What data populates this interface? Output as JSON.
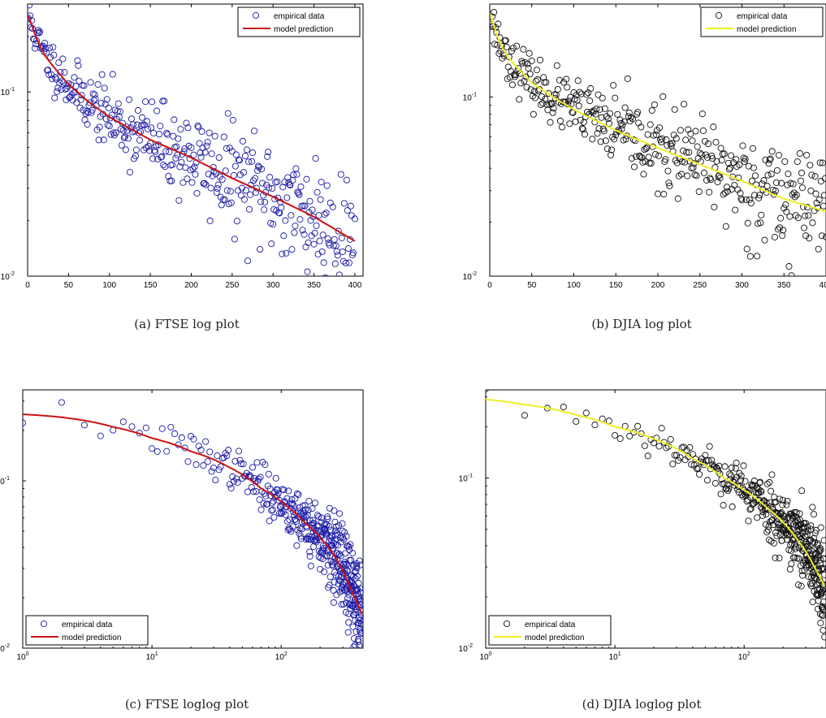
{
  "chart_data": [
    {
      "id": "a",
      "type": "scatter",
      "caption": "(a)  FTSE log plot",
      "xscale": "linear",
      "yscale": "log",
      "xlim": [
        0,
        410
      ],
      "ylim": [
        0.01,
        0.3
      ],
      "xticks": [
        0,
        50,
        100,
        150,
        200,
        250,
        300,
        350,
        400
      ],
      "yticks": [
        {
          "v": 0.01,
          "b": "10",
          "e": "-2"
        },
        {
          "v": 0.1,
          "b": "10",
          "e": "-1"
        }
      ],
      "legend": {
        "position": "top-right",
        "entries": [
          "empirical data",
          "model prediction"
        ]
      },
      "marker_color": "#1a1aa6",
      "line_color": "#cc1111",
      "model": {
        "name": "model prediction",
        "x": [
          1,
          5,
          10,
          20,
          30,
          50,
          75,
          100,
          150,
          200,
          250,
          300,
          350,
          400
        ],
        "y": [
          0.26,
          0.23,
          0.2,
          0.16,
          0.14,
          0.11,
          0.088,
          0.073,
          0.055,
          0.044,
          0.034,
          0.027,
          0.021,
          0.0155
        ]
      },
      "scatter": {
        "name": "empirical data",
        "n": 400,
        "xmin": 1,
        "xmax": 400,
        "spacing": "linear",
        "spread": 0.16,
        "seed": 11
      }
    },
    {
      "id": "b",
      "type": "scatter",
      "caption": "(b)  DJIA log plot",
      "xscale": "linear",
      "yscale": "log",
      "xlim": [
        0,
        400
      ],
      "ylim": [
        0.01,
        0.33
      ],
      "xticks": [
        0,
        50,
        100,
        150,
        200,
        250,
        300,
        350,
        400
      ],
      "yticks": [
        {
          "v": 0.01,
          "b": "10",
          "e": "-2"
        },
        {
          "v": 0.1,
          "b": "10",
          "e": "-1"
        }
      ],
      "legend": {
        "position": "top-right",
        "entries": [
          "empirical data",
          "model prediction"
        ]
      },
      "marker_color": "#111111",
      "line_color": "#eeee22",
      "model": {
        "name": "model prediction",
        "x": [
          1,
          5,
          10,
          20,
          30,
          50,
          75,
          100,
          150,
          200,
          250,
          300,
          350,
          400
        ],
        "y": [
          0.29,
          0.25,
          0.21,
          0.17,
          0.15,
          0.12,
          0.1,
          0.085,
          0.065,
          0.052,
          0.042,
          0.034,
          0.027,
          0.023
        ]
      },
      "scatter": {
        "name": "empirical data",
        "n": 400,
        "xmin": 1,
        "xmax": 400,
        "spacing": "linear",
        "spread": 0.15,
        "seed": 23
      }
    },
    {
      "id": "c",
      "type": "scatter",
      "caption": "(c)  FTSE loglog plot",
      "xscale": "log",
      "yscale": "log",
      "xlim": [
        1,
        430
      ],
      "ylim": [
        0.01,
        0.35
      ],
      "xticks": [
        {
          "v": 1,
          "b": "10",
          "e": "0"
        },
        {
          "v": 10,
          "b": "10",
          "e": "1"
        },
        {
          "v": 100,
          "b": "10",
          "e": "2"
        }
      ],
      "yticks": [
        {
          "v": 0.01,
          "b": "10",
          "e": "-2"
        },
        {
          "v": 0.1,
          "b": "10",
          "e": "-1"
        }
      ],
      "legend": {
        "position": "bottom-left",
        "entries": [
          "empirical data",
          "model prediction"
        ]
      },
      "marker_color": "#1a1aa6",
      "line_color": "#cc1111",
      "model": {
        "name": "model prediction",
        "x": [
          1,
          2,
          5,
          10,
          20,
          40,
          70,
          100,
          150,
          200,
          250,
          300,
          350,
          420
        ],
        "y": [
          0.25,
          0.24,
          0.21,
          0.18,
          0.15,
          0.12,
          0.09,
          0.075,
          0.057,
          0.046,
          0.037,
          0.029,
          0.022,
          0.016
        ]
      },
      "scatter": {
        "name": "empirical data",
        "n": 420,
        "xmin": 1,
        "xmax": 420,
        "spacing": "linear",
        "spread": 0.14,
        "seed": 37
      }
    },
    {
      "id": "d",
      "type": "scatter",
      "caption": "(d)  DJIA loglog plot",
      "xscale": "log",
      "yscale": "log",
      "xlim": [
        1,
        430
      ],
      "ylim": [
        0.01,
        0.33
      ],
      "xticks": [
        {
          "v": 1,
          "b": "10",
          "e": "0"
        },
        {
          "v": 10,
          "b": "10",
          "e": "1"
        },
        {
          "v": 100,
          "b": "10",
          "e": "2"
        }
      ],
      "yticks": [
        {
          "v": 0.01,
          "b": "10",
          "e": "-2"
        },
        {
          "v": 0.1,
          "b": "10",
          "e": "-1"
        }
      ],
      "legend": {
        "position": "bottom-left",
        "entries": [
          "empirical data",
          "model prediction"
        ]
      },
      "marker_color": "#111111",
      "line_color": "#eeee22",
      "model": {
        "name": "model prediction",
        "x": [
          1,
          2,
          5,
          10,
          20,
          40,
          70,
          100,
          150,
          200,
          250,
          300,
          350,
          420
        ],
        "y": [
          0.29,
          0.27,
          0.235,
          0.2,
          0.17,
          0.13,
          0.1,
          0.085,
          0.067,
          0.055,
          0.045,
          0.037,
          0.03,
          0.023
        ]
      },
      "scatter": {
        "name": "empirical data",
        "n": 420,
        "xmin": 1,
        "xmax": 420,
        "spacing": "linear",
        "spread": 0.13,
        "seed": 53
      }
    }
  ]
}
